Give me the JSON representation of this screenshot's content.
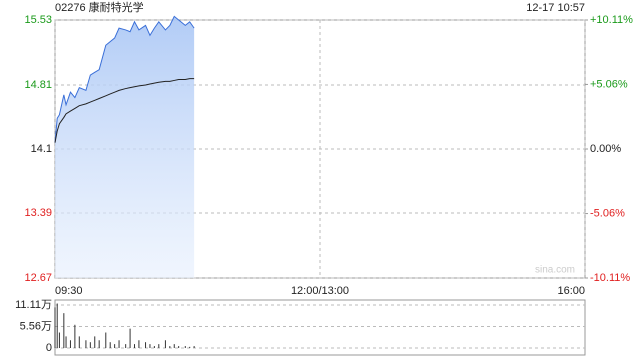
{
  "chart_data": {
    "type": "line",
    "title": "02276 康耐特光学",
    "timestamp": "12-17 10:57",
    "watermark": "sina.com",
    "xlim": [
      0,
      240
    ],
    "xticks": [
      {
        "value": 0,
        "label": "09:30"
      },
      {
        "value": 120,
        "label": "12:00/13:00"
      },
      {
        "value": 240,
        "label": "16:00"
      }
    ],
    "ylim": [
      12.67,
      15.53
    ],
    "yticks": [
      15.53,
      14.81,
      14.1,
      13.39,
      12.67
    ],
    "y2lim": [
      -10.11,
      10.11
    ],
    "y2ticks": [
      {
        "value": 10.11,
        "label": "+10.11%"
      },
      {
        "value": 5.06,
        "label": "+5.06%"
      },
      {
        "value": 0,
        "label": "0.00%"
      },
      {
        "value": -5.06,
        "label": "-5.06%"
      },
      {
        "value": -10.11,
        "label": "-10.11%"
      }
    ],
    "up_color": "#1a9a1a",
    "down_color": "#e02020",
    "grid": true,
    "x": [
      0,
      1,
      2,
      4,
      5,
      7,
      9,
      11,
      14,
      16,
      18,
      20,
      23,
      25,
      27,
      29,
      32,
      34,
      36,
      38,
      41,
      43,
      45,
      47,
      50,
      52,
      54,
      56,
      59,
      61,
      63
    ],
    "series": [
      {
        "name": "price",
        "color": "#3a6fd8",
        "values": [
          14.17,
          14.44,
          14.48,
          14.7,
          14.59,
          14.73,
          14.67,
          14.78,
          14.75,
          14.92,
          14.95,
          14.98,
          15.25,
          15.29,
          15.33,
          15.44,
          15.42,
          15.4,
          15.51,
          15.42,
          15.47,
          15.36,
          15.44,
          15.51,
          15.42,
          15.47,
          15.57,
          15.53,
          15.47,
          15.51,
          15.44
        ]
      },
      {
        "name": "average",
        "color": "#222222",
        "values": [
          14.17,
          14.3,
          14.38,
          14.45,
          14.49,
          14.52,
          14.55,
          14.58,
          14.6,
          14.62,
          14.64,
          14.66,
          14.69,
          14.71,
          14.73,
          14.75,
          14.77,
          14.78,
          14.79,
          14.8,
          14.81,
          14.82,
          14.83,
          14.84,
          14.85,
          14.85,
          14.86,
          14.87,
          14.87,
          14.88,
          14.88
        ]
      }
    ],
    "volume": {
      "ylim": [
        0,
        12.4
      ],
      "yticks": [
        {
          "value": 11.11,
          "label": "11.11万"
        },
        {
          "value": 5.56,
          "label": "5.56万"
        },
        0
      ],
      "color": "#333333",
      "values": [
        10.5,
        11.5,
        4,
        9,
        3,
        2,
        6,
        3,
        2,
        1.5,
        3,
        2,
        4,
        1.5,
        1,
        2,
        1,
        5,
        1,
        2,
        1.5,
        1,
        0.5,
        1,
        2,
        0.5,
        1,
        0.5,
        0.5,
        0.3,
        0.5
      ]
    }
  }
}
